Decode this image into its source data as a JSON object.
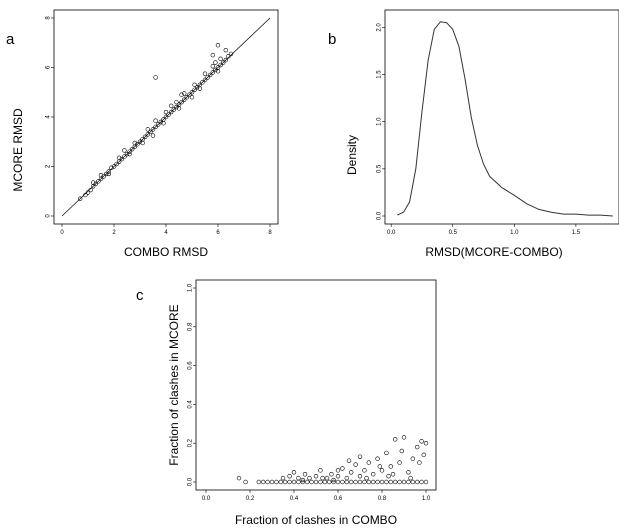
{
  "chart_data": [
    {
      "panel_label": "a",
      "type": "scatter",
      "xlabel": "COMBO RMSD",
      "ylabel": "MCORE RMSD",
      "xlim": [
        0,
        8
      ],
      "ylim": [
        0,
        8
      ],
      "xticks": [
        "0",
        "2",
        "4",
        "6",
        "8"
      ],
      "yticks": [
        "0",
        "2",
        "4",
        "6",
        "8"
      ],
      "reference_line": "y = x",
      "points": [
        [
          0.7,
          0.7
        ],
        [
          0.9,
          0.85
        ],
        [
          1.0,
          0.95
        ],
        [
          1.1,
          1.05
        ],
        [
          1.2,
          1.2
        ],
        [
          1.3,
          1.3
        ],
        [
          1.4,
          1.4
        ],
        [
          1.5,
          1.5
        ],
        [
          1.6,
          1.6
        ],
        [
          1.7,
          1.7
        ],
        [
          1.8,
          1.8
        ],
        [
          1.9,
          1.95
        ],
        [
          2.0,
          2.0
        ],
        [
          2.1,
          2.1
        ],
        [
          2.2,
          2.2
        ],
        [
          2.3,
          2.3
        ],
        [
          2.4,
          2.4
        ],
        [
          2.5,
          2.5
        ],
        [
          2.6,
          2.6
        ],
        [
          2.7,
          2.7
        ],
        [
          2.8,
          2.8
        ],
        [
          2.9,
          2.9
        ],
        [
          3.0,
          3.0
        ],
        [
          3.1,
          3.1
        ],
        [
          3.2,
          3.2
        ],
        [
          3.3,
          3.3
        ],
        [
          3.4,
          3.4
        ],
        [
          3.5,
          3.5
        ],
        [
          3.6,
          3.6
        ],
        [
          3.7,
          3.7
        ],
        [
          3.8,
          3.8
        ],
        [
          3.9,
          3.9
        ],
        [
          4.0,
          4.0
        ],
        [
          4.1,
          4.1
        ],
        [
          4.2,
          4.2
        ],
        [
          4.3,
          4.3
        ],
        [
          4.4,
          4.4
        ],
        [
          4.5,
          4.5
        ],
        [
          4.6,
          4.6
        ],
        [
          4.7,
          4.7
        ],
        [
          4.8,
          4.8
        ],
        [
          4.9,
          4.9
        ],
        [
          5.0,
          5.0
        ],
        [
          5.1,
          5.1
        ],
        [
          5.2,
          5.2
        ],
        [
          5.3,
          5.3
        ],
        [
          5.4,
          5.4
        ],
        [
          5.5,
          5.5
        ],
        [
          5.6,
          5.6
        ],
        [
          5.7,
          5.7
        ],
        [
          5.8,
          5.8
        ],
        [
          5.9,
          5.9
        ],
        [
          6.0,
          6.0
        ],
        [
          6.1,
          6.1
        ],
        [
          6.2,
          6.2
        ],
        [
          6.3,
          6.3
        ],
        [
          6.4,
          6.45
        ],
        [
          6.5,
          6.55
        ],
        [
          1.5,
          1.65
        ],
        [
          2.2,
          2.35
        ],
        [
          2.8,
          2.95
        ],
        [
          3.3,
          3.5
        ],
        [
          3.6,
          3.85
        ],
        [
          4.0,
          4.2
        ],
        [
          4.4,
          4.6
        ],
        [
          4.7,
          4.95
        ],
        [
          5.1,
          5.3
        ],
        [
          5.5,
          5.75
        ],
        [
          5.8,
          6.05
        ],
        [
          6.1,
          6.35
        ],
        [
          1.8,
          1.7
        ],
        [
          2.6,
          2.5
        ],
        [
          3.1,
          2.95
        ],
        [
          3.9,
          3.75
        ],
        [
          4.5,
          4.35
        ],
        [
          5.3,
          5.15
        ],
        [
          6.0,
          5.85
        ],
        [
          3.5,
          3.25
        ],
        [
          4.2,
          4.45
        ],
        [
          5.9,
          6.2
        ],
        [
          6.0,
          6.9
        ],
        [
          5.8,
          6.5
        ],
        [
          3.6,
          5.6
        ],
        [
          4.6,
          4.9
        ],
        [
          2.4,
          2.65
        ],
        [
          5.0,
          4.8
        ],
        [
          6.3,
          6.7
        ],
        [
          1.2,
          1.35
        ]
      ]
    },
    {
      "panel_label": "b",
      "type": "line",
      "xlabel": "RMSD(MCORE-COMBO)",
      "ylabel": "Density",
      "xlim": [
        -0.05,
        1.85
      ],
      "ylim": [
        0,
        2.1
      ],
      "xticks": [
        "0.0",
        "0.5",
        "1.0",
        "1.5"
      ],
      "yticks": [
        "0.0",
        "0.5",
        "1.0",
        "1.5",
        "2.0"
      ],
      "x": [
        0.05,
        0.1,
        0.15,
        0.2,
        0.25,
        0.3,
        0.35,
        0.4,
        0.45,
        0.5,
        0.55,
        0.6,
        0.65,
        0.7,
        0.75,
        0.8,
        0.9,
        1.0,
        1.1,
        1.2,
        1.3,
        1.4,
        1.5,
        1.6,
        1.7,
        1.8
      ],
      "y": [
        0.01,
        0.04,
        0.15,
        0.5,
        1.1,
        1.65,
        1.98,
        2.06,
        2.05,
        1.98,
        1.8,
        1.45,
        1.05,
        0.75,
        0.55,
        0.42,
        0.3,
        0.22,
        0.13,
        0.07,
        0.04,
        0.02,
        0.02,
        0.01,
        0.01,
        0.0
      ]
    },
    {
      "panel_label": "c",
      "type": "scatter",
      "xlabel": "Fraction of clashes in COMBO",
      "ylabel": "Fraction of clashes in MCORE",
      "xlim": [
        0,
        1
      ],
      "ylim": [
        0,
        1
      ],
      "xticks": [
        "0.0",
        "0.2",
        "0.4",
        "0.6",
        "0.8",
        "1.0"
      ],
      "yticks": [
        "0.0",
        "0.2",
        "0.4",
        "0.6",
        "0.8",
        "1.0"
      ],
      "points": [
        [
          0.15,
          0.02
        ],
        [
          0.18,
          0.0
        ],
        [
          0.24,
          0.0
        ],
        [
          0.26,
          0.0
        ],
        [
          0.28,
          0.0
        ],
        [
          0.3,
          0.0
        ],
        [
          0.32,
          0.0
        ],
        [
          0.34,
          0.0
        ],
        [
          0.36,
          0.0
        ],
        [
          0.38,
          0.0
        ],
        [
          0.4,
          0.0
        ],
        [
          0.42,
          0.0
        ],
        [
          0.44,
          0.0
        ],
        [
          0.46,
          0.0
        ],
        [
          0.48,
          0.0
        ],
        [
          0.5,
          0.0
        ],
        [
          0.52,
          0.0
        ],
        [
          0.54,
          0.0
        ],
        [
          0.56,
          0.0
        ],
        [
          0.58,
          0.0
        ],
        [
          0.6,
          0.0
        ],
        [
          0.62,
          0.0
        ],
        [
          0.64,
          0.0
        ],
        [
          0.66,
          0.0
        ],
        [
          0.68,
          0.0
        ],
        [
          0.7,
          0.0
        ],
        [
          0.72,
          0.0
        ],
        [
          0.74,
          0.0
        ],
        [
          0.76,
          0.0
        ],
        [
          0.78,
          0.0
        ],
        [
          0.8,
          0.0
        ],
        [
          0.82,
          0.0
        ],
        [
          0.84,
          0.0
        ],
        [
          0.86,
          0.0
        ],
        [
          0.88,
          0.0
        ],
        [
          0.9,
          0.0
        ],
        [
          0.92,
          0.0
        ],
        [
          0.94,
          0.0
        ],
        [
          0.96,
          0.0
        ],
        [
          0.98,
          0.0
        ],
        [
          1.0,
          0.0
        ],
        [
          0.35,
          0.02
        ],
        [
          0.38,
          0.03
        ],
        [
          0.4,
          0.05
        ],
        [
          0.42,
          0.02
        ],
        [
          0.45,
          0.04
        ],
        [
          0.47,
          0.02
        ],
        [
          0.5,
          0.03
        ],
        [
          0.52,
          0.06
        ],
        [
          0.55,
          0.02
        ],
        [
          0.57,
          0.04
        ],
        [
          0.6,
          0.03
        ],
        [
          0.62,
          0.07
        ],
        [
          0.64,
          0.02
        ],
        [
          0.66,
          0.05
        ],
        [
          0.68,
          0.09
        ],
        [
          0.7,
          0.03
        ],
        [
          0.72,
          0.06
        ],
        [
          0.74,
          0.1
        ],
        [
          0.76,
          0.04
        ],
        [
          0.78,
          0.12
        ],
        [
          0.8,
          0.06
        ],
        [
          0.82,
          0.15
        ],
        [
          0.84,
          0.08
        ],
        [
          0.86,
          0.22
        ],
        [
          0.88,
          0.1
        ],
        [
          0.9,
          0.23
        ],
        [
          0.92,
          0.05
        ],
        [
          0.94,
          0.12
        ],
        [
          0.96,
          0.18
        ],
        [
          0.98,
          0.21
        ],
        [
          1.0,
          0.2
        ],
        [
          0.44,
          0.01
        ],
        [
          0.58,
          0.01
        ],
        [
          0.73,
          0.02
        ],
        [
          0.83,
          0.03
        ],
        [
          0.93,
          0.02
        ],
        [
          0.65,
          0.11
        ],
        [
          0.79,
          0.08
        ],
        [
          0.89,
          0.16
        ],
        [
          0.97,
          0.1
        ],
        [
          0.99,
          0.14
        ],
        [
          0.53,
          0.02
        ],
        [
          0.6,
          0.06
        ],
        [
          0.7,
          0.13
        ],
        [
          0.85,
          0.04
        ]
      ]
    }
  ]
}
